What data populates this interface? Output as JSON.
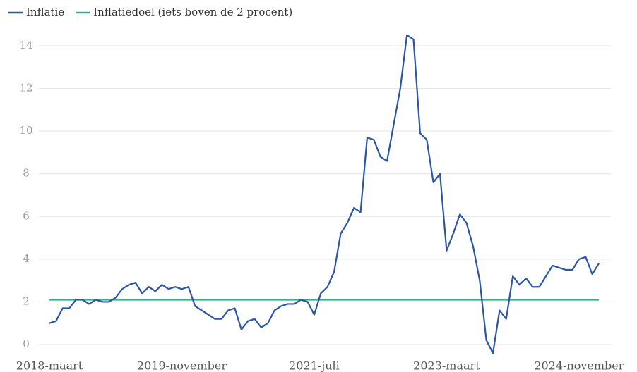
{
  "chart_data": {
    "type": "line",
    "categories": [
      "2018-maart",
      null,
      null,
      null,
      null,
      null,
      null,
      null,
      null,
      null,
      null,
      null,
      null,
      null,
      null,
      null,
      null,
      null,
      null,
      null,
      "2019-november",
      null,
      null,
      null,
      null,
      null,
      null,
      null,
      null,
      null,
      null,
      null,
      null,
      null,
      null,
      null,
      null,
      null,
      null,
      null,
      "2021-juli",
      null,
      null,
      null,
      null,
      null,
      null,
      null,
      null,
      null,
      null,
      null,
      null,
      null,
      null,
      null,
      null,
      null,
      null,
      null,
      "2023-maart",
      null,
      null,
      null,
      null,
      null,
      null,
      null,
      null,
      null,
      null,
      null,
      null,
      null,
      null,
      null,
      null,
      null,
      null,
      null,
      "2024-november",
      null,
      null,
      null
    ],
    "series": [
      {
        "name": "Inflatie",
        "color": "#2b55a6",
        "values": [
          1.0,
          1.1,
          1.7,
          1.7,
          2.1,
          2.1,
          1.9,
          2.1,
          2.0,
          2.0,
          2.2,
          2.6,
          2.8,
          2.9,
          2.4,
          2.7,
          2.5,
          2.8,
          2.6,
          2.7,
          2.6,
          2.7,
          1.8,
          1.6,
          1.4,
          1.2,
          1.2,
          1.6,
          1.7,
          0.7,
          1.1,
          1.2,
          0.8,
          1.0,
          1.6,
          1.8,
          1.9,
          1.9,
          2.1,
          2.0,
          1.4,
          2.4,
          2.7,
          3.4,
          5.2,
          5.7,
          6.4,
          6.2,
          9.7,
          9.6,
          8.8,
          8.6,
          10.3,
          12.0,
          14.5,
          14.3,
          9.9,
          9.6,
          7.6,
          8.0,
          4.4,
          5.2,
          6.1,
          5.7,
          4.6,
          3.0,
          0.2,
          -0.4,
          1.6,
          1.2,
          3.2,
          2.8,
          3.1,
          2.7,
          2.7,
          3.2,
          3.7,
          3.6,
          3.5,
          3.5,
          4.0,
          4.1,
          3.3,
          3.8
        ]
      },
      {
        "name": "Inflatiedoel (iets boven de 2 procent)",
        "color": "#2db389",
        "values": [
          2.1,
          2.1,
          2.1,
          2.1,
          2.1,
          2.1,
          2.1,
          2.1,
          2.1,
          2.1,
          2.1,
          2.1,
          2.1,
          2.1,
          2.1,
          2.1,
          2.1,
          2.1,
          2.1,
          2.1,
          2.1,
          2.1,
          2.1,
          2.1,
          2.1,
          2.1,
          2.1,
          2.1,
          2.1,
          2.1,
          2.1,
          2.1,
          2.1,
          2.1,
          2.1,
          2.1,
          2.1,
          2.1,
          2.1,
          2.1,
          2.1,
          2.1,
          2.1,
          2.1,
          2.1,
          2.1,
          2.1,
          2.1,
          2.1,
          2.1,
          2.1,
          2.1,
          2.1,
          2.1,
          2.1,
          2.1,
          2.1,
          2.1,
          2.1,
          2.1,
          2.1,
          2.1,
          2.1,
          2.1,
          2.1,
          2.1,
          2.1,
          2.1,
          2.1,
          2.1,
          2.1,
          2.1,
          2.1,
          2.1,
          2.1,
          2.1,
          2.1,
          2.1,
          2.1,
          2.1,
          2.1,
          2.1,
          2.1,
          2.1
        ]
      }
    ],
    "ylim": [
      0,
      14
    ],
    "yticks": [
      0,
      2,
      4,
      6,
      8,
      10,
      12,
      14
    ],
    "grid": true,
    "legend": "top"
  }
}
